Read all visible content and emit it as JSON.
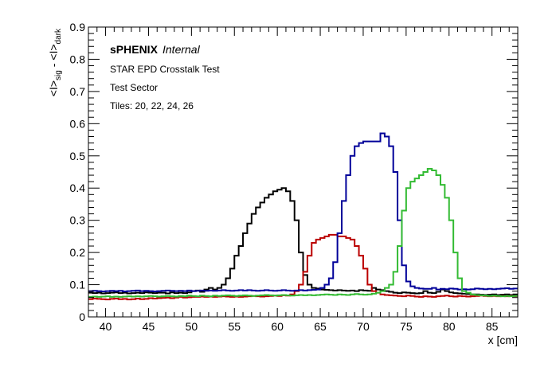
{
  "chart_data": {
    "type": "line",
    "title": "",
    "xlabel": "x [cm]",
    "ylabel": "<I>_sig - <I>_dark",
    "ylabel_parts": {
      "main": "<I>",
      "sub1": "sig",
      "sep": " - ",
      "main2": "<I>",
      "sub2": "dark"
    },
    "xlim": [
      38,
      88
    ],
    "ylim": [
      0,
      0.9
    ],
    "x_ticks": [
      40,
      45,
      50,
      55,
      60,
      65,
      70,
      75,
      80,
      85
    ],
    "y_ticks": [
      0,
      0.1,
      0.2,
      0.3,
      0.4,
      0.5,
      0.6,
      0.7,
      0.8,
      0.9
    ],
    "x_tick_labels": [
      "40",
      "45",
      "50",
      "55",
      "60",
      "65",
      "70",
      "75",
      "80",
      "85"
    ],
    "y_tick_labels": [
      "0",
      "0.1",
      "0.2",
      "0.3",
      "0.4",
      "0.5",
      "0.6",
      "0.7",
      "0.8",
      "0.9"
    ],
    "grid": false,
    "annotations": {
      "brand": "sPHENIX",
      "status": "Internal",
      "line1": "STAR EPD Crosstalk Test",
      "line2": "Test Sector",
      "line3": "Tiles: 20, 22, 24, 26"
    },
    "bin_width": 0.5,
    "x_start": 38,
    "series": [
      {
        "color": "#000000",
        "values": [
          0.075,
          0.074,
          0.075,
          0.073,
          0.074,
          0.075,
          0.076,
          0.074,
          0.075,
          0.073,
          0.074,
          0.075,
          0.074,
          0.076,
          0.075,
          0.074,
          0.075,
          0.075,
          0.073,
          0.076,
          0.074,
          0.075,
          0.074,
          0.076,
          0.08,
          0.082,
          0.078,
          0.085,
          0.09,
          0.085,
          0.09,
          0.1,
          0.12,
          0.15,
          0.19,
          0.22,
          0.26,
          0.29,
          0.32,
          0.34,
          0.355,
          0.37,
          0.38,
          0.39,
          0.395,
          0.4,
          0.39,
          0.36,
          0.3,
          0.2,
          0.13,
          0.1,
          0.09,
          0.088,
          0.085,
          0.084,
          0.083,
          0.082,
          0.083,
          0.082,
          0.081,
          0.082,
          0.08,
          0.083,
          0.082,
          0.081,
          0.09,
          0.085,
          0.083,
          0.08,
          0.078,
          0.075,
          0.074,
          0.076,
          0.075,
          0.074,
          0.073,
          0.074,
          0.08,
          0.075,
          0.074,
          0.078,
          0.085,
          0.08,
          0.076,
          0.074,
          0.073,
          0.072,
          0.071,
          0.07,
          0.07,
          0.069,
          0.068,
          0.069,
          0.07,
          0.068,
          0.069,
          0.07,
          0.068,
          0.07
        ]
      },
      {
        "color": "#bb0000",
        "values": [
          0.055,
          0.057,
          0.056,
          0.055,
          0.054,
          0.056,
          0.057,
          0.055,
          0.056,
          0.054,
          0.055,
          0.057,
          0.055,
          0.056,
          0.058,
          0.057,
          0.058,
          0.059,
          0.06,
          0.058,
          0.06,
          0.062,
          0.06,
          0.061,
          0.062,
          0.062,
          0.063,
          0.062,
          0.063,
          0.062,
          0.063,
          0.064,
          0.063,
          0.062,
          0.063,
          0.062,
          0.063,
          0.064,
          0.065,
          0.064,
          0.063,
          0.064,
          0.065,
          0.066,
          0.065,
          0.067,
          0.066,
          0.07,
          0.08,
          0.1,
          0.14,
          0.19,
          0.23,
          0.24,
          0.245,
          0.25,
          0.255,
          0.255,
          0.25,
          0.25,
          0.245,
          0.24,
          0.22,
          0.19,
          0.15,
          0.1,
          0.08,
          0.075,
          0.07,
          0.068,
          0.067,
          0.066,
          0.065,
          0.064,
          0.066,
          0.065,
          0.063,
          0.062,
          0.064,
          0.063,
          0.062,
          0.064,
          0.065,
          0.066,
          0.064,
          0.063,
          0.065,
          0.064,
          0.063,
          0.064,
          0.065,
          0.066,
          0.065,
          0.064,
          0.065,
          0.064,
          0.065,
          0.064,
          0.065,
          0.064
        ]
      },
      {
        "color": "#000099",
        "values": [
          0.08,
          0.081,
          0.08,
          0.079,
          0.08,
          0.081,
          0.08,
          0.081,
          0.079,
          0.08,
          0.081,
          0.082,
          0.08,
          0.081,
          0.08,
          0.079,
          0.08,
          0.081,
          0.082,
          0.081,
          0.08,
          0.081,
          0.08,
          0.082,
          0.08,
          0.081,
          0.082,
          0.081,
          0.082,
          0.081,
          0.082,
          0.083,
          0.082,
          0.081,
          0.082,
          0.083,
          0.082,
          0.083,
          0.082,
          0.081,
          0.082,
          0.083,
          0.082,
          0.081,
          0.082,
          0.083,
          0.082,
          0.081,
          0.082,
          0.083,
          0.082,
          0.083,
          0.084,
          0.085,
          0.09,
          0.1,
          0.12,
          0.17,
          0.26,
          0.36,
          0.44,
          0.5,
          0.53,
          0.54,
          0.545,
          0.545,
          0.545,
          0.545,
          0.57,
          0.56,
          0.53,
          0.45,
          0.3,
          0.16,
          0.11,
          0.095,
          0.09,
          0.088,
          0.087,
          0.087,
          0.09,
          0.085,
          0.087,
          0.086,
          0.088,
          0.087,
          0.085,
          0.086,
          0.085,
          0.086,
          0.088,
          0.087,
          0.086,
          0.087,
          0.086,
          0.087,
          0.088,
          0.089,
          0.087,
          0.088
        ]
      },
      {
        "color": "#33bb33",
        "values": [
          0.062,
          0.063,
          0.062,
          0.063,
          0.064,
          0.062,
          0.063,
          0.062,
          0.063,
          0.064,
          0.063,
          0.064,
          0.063,
          0.064,
          0.065,
          0.064,
          0.063,
          0.064,
          0.065,
          0.064,
          0.063,
          0.065,
          0.064,
          0.066,
          0.065,
          0.064,
          0.066,
          0.065,
          0.064,
          0.066,
          0.065,
          0.066,
          0.067,
          0.066,
          0.065,
          0.066,
          0.067,
          0.066,
          0.065,
          0.066,
          0.067,
          0.068,
          0.067,
          0.066,
          0.067,
          0.068,
          0.067,
          0.066,
          0.067,
          0.068,
          0.067,
          0.068,
          0.067,
          0.068,
          0.069,
          0.07,
          0.069,
          0.068,
          0.07,
          0.069,
          0.068,
          0.07,
          0.071,
          0.07,
          0.069,
          0.07,
          0.072,
          0.075,
          0.08,
          0.09,
          0.1,
          0.14,
          0.22,
          0.33,
          0.4,
          0.42,
          0.43,
          0.44,
          0.45,
          0.46,
          0.455,
          0.44,
          0.41,
          0.37,
          0.3,
          0.2,
          0.12,
          0.08,
          0.075,
          0.07,
          0.068,
          0.067,
          0.066,
          0.065,
          0.066,
          0.065,
          0.064,
          0.065,
          0.064,
          0.065
        ]
      }
    ]
  }
}
